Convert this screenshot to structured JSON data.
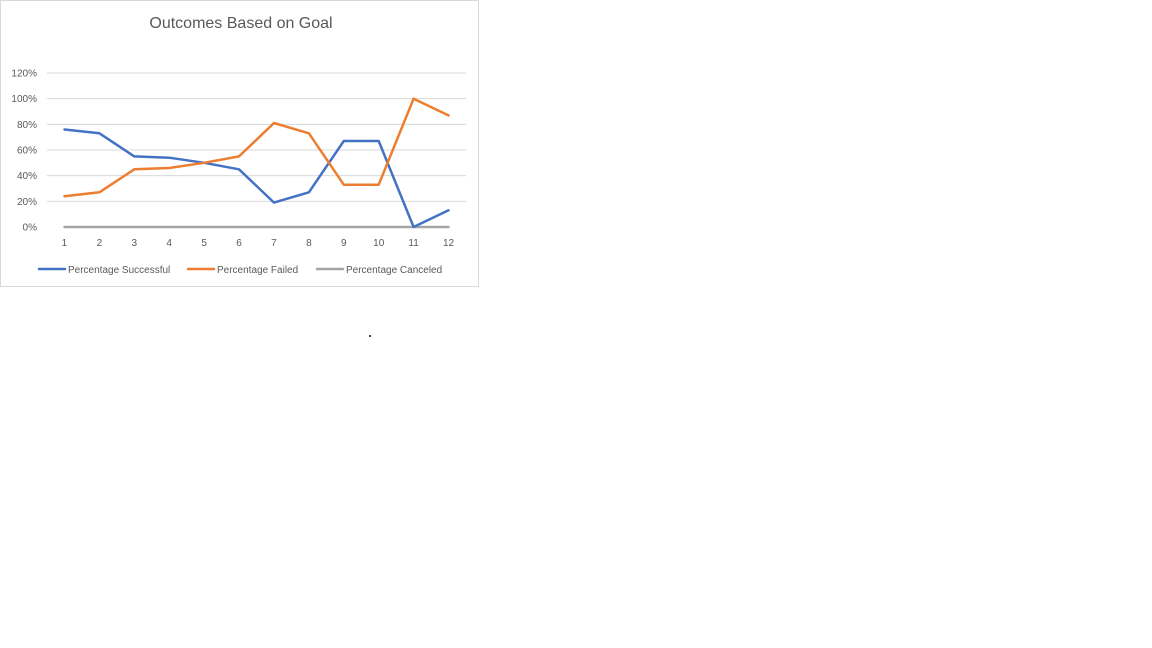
{
  "chart_data": {
    "type": "line",
    "title": "Outcomes Based on Goal",
    "xlabel": "",
    "ylabel": "",
    "categories": [
      "1",
      "2",
      "3",
      "4",
      "5",
      "6",
      "7",
      "8",
      "9",
      "10",
      "11",
      "12"
    ],
    "ylim": [
      0,
      1.2
    ],
    "yticks": [
      0,
      0.2,
      0.4,
      0.6,
      0.8,
      1.0,
      1.2
    ],
    "ytick_labels": [
      "0%",
      "20%",
      "40%",
      "60%",
      "80%",
      "100%",
      "120%"
    ],
    "grid": true,
    "legend_position": "bottom",
    "series": [
      {
        "name": "Percentage Successful",
        "color": "#4472c4",
        "values": [
          0.76,
          0.73,
          0.55,
          0.54,
          0.5,
          0.45,
          0.19,
          0.27,
          0.67,
          0.67,
          0.0,
          0.13
        ]
      },
      {
        "name": "Percentage Failed",
        "color": "#ed7d31",
        "values": [
          0.24,
          0.27,
          0.45,
          0.46,
          0.5,
          0.55,
          0.81,
          0.73,
          0.33,
          0.33,
          1.0,
          0.87
        ]
      },
      {
        "name": "Percentage Canceled",
        "color": "#a5a5a5",
        "values": [
          0,
          0,
          0,
          0,
          0,
          0,
          0,
          0,
          0,
          0,
          0,
          0
        ]
      }
    ]
  }
}
